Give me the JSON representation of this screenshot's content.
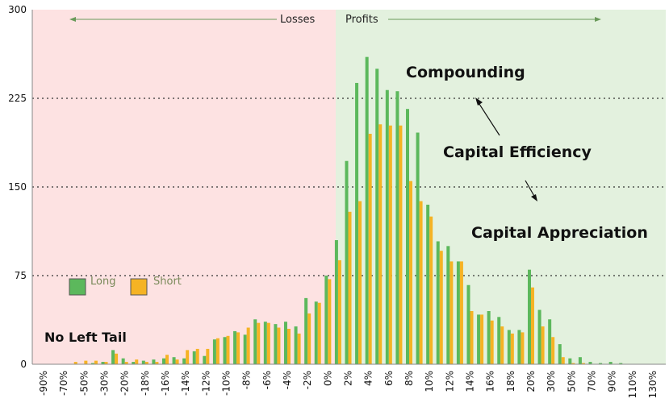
{
  "chart_data": {
    "type": "bar",
    "categories": [
      "-90%",
      "-80%",
      "-70%",
      "-60%",
      "-50%",
      "-40%",
      "-30%",
      "-25%",
      "-20%",
      "-19%",
      "-18%",
      "-17%",
      "-16%",
      "-15%",
      "-14%",
      "-13%",
      "-12%",
      "-11%",
      "-10%",
      "-9%",
      "-8%",
      "-7%",
      "-6%",
      "-5%",
      "-4%",
      "-3%",
      "-2%",
      "-1%",
      "0%",
      "1%",
      "2%",
      "3%",
      "4%",
      "5%",
      "6%",
      "7%",
      "8%",
      "9%",
      "10%",
      "11%",
      "12%",
      "13%",
      "14%",
      "15%",
      "16%",
      "17%",
      "18%",
      "19%",
      "20%",
      "25%",
      "30%",
      "40%",
      "50%",
      "60%",
      "70%",
      "80%",
      "90%",
      "100%",
      "110%",
      "120%",
      "130%"
    ],
    "tick_labels": [
      "-90%",
      "-70%",
      "-50%",
      "-30%",
      "-20%",
      "-18%",
      "-16%",
      "-14%",
      "-12%",
      "-10%",
      "-8%",
      "-6%",
      "-4%",
      "-2%",
      "0%",
      "2%",
      "4%",
      "6%",
      "8%",
      "10%",
      "12%",
      "14%",
      "16%",
      "18%",
      "20%",
      "30%",
      "50%",
      "70%",
      "90%",
      "110%",
      "130%"
    ],
    "series": [
      {
        "name": "Long",
        "color": "#5cb85c",
        "values": [
          0,
          0,
          0,
          0,
          0,
          1,
          2,
          12,
          5,
          2,
          3,
          4,
          5,
          6,
          5,
          11,
          7,
          21,
          23,
          28,
          25,
          38,
          36,
          34,
          36,
          32,
          56,
          53,
          75,
          105,
          172,
          238,
          260,
          250,
          232,
          231,
          216,
          196,
          135,
          104,
          100,
          87,
          67,
          42,
          45,
          40,
          29,
          29,
          80,
          46,
          38,
          17,
          5,
          6,
          2,
          1,
          2,
          1,
          0,
          0,
          0
        ]
      },
      {
        "name": "Short",
        "color": "#f5b324",
        "values": [
          0,
          0,
          0,
          2,
          3,
          3,
          2,
          9,
          2,
          4,
          2,
          2,
          8,
          4,
          12,
          13,
          13,
          22,
          24,
          27,
          31,
          35,
          35,
          31,
          30,
          26,
          43,
          52,
          72,
          88,
          129,
          138,
          195,
          203,
          202,
          202,
          155,
          138,
          125,
          96,
          87,
          87,
          45,
          42,
          37,
          32,
          26,
          27,
          65,
          32,
          23,
          6,
          1,
          1,
          0,
          0,
          0,
          0,
          0,
          0,
          0
        ]
      }
    ],
    "ylim": [
      0,
      300
    ],
    "yticks": [
      0,
      75,
      150,
      225,
      300
    ],
    "grid": "dotted horizontal at 75, 150, 225",
    "regions": {
      "losses_label": "Losses",
      "profits_label": "Profits",
      "losses_color": "#fde2e2",
      "profits_color": "#e3f1de"
    },
    "legend": {
      "placement": "left",
      "long_label": "Long",
      "short_label": "Short"
    },
    "annotations": {
      "compounding": "Compounding",
      "capital_efficiency": "Capital Efficiency",
      "capital_appreciation": "Capital Appreciation",
      "no_left_tail": "No Left Tail"
    }
  }
}
